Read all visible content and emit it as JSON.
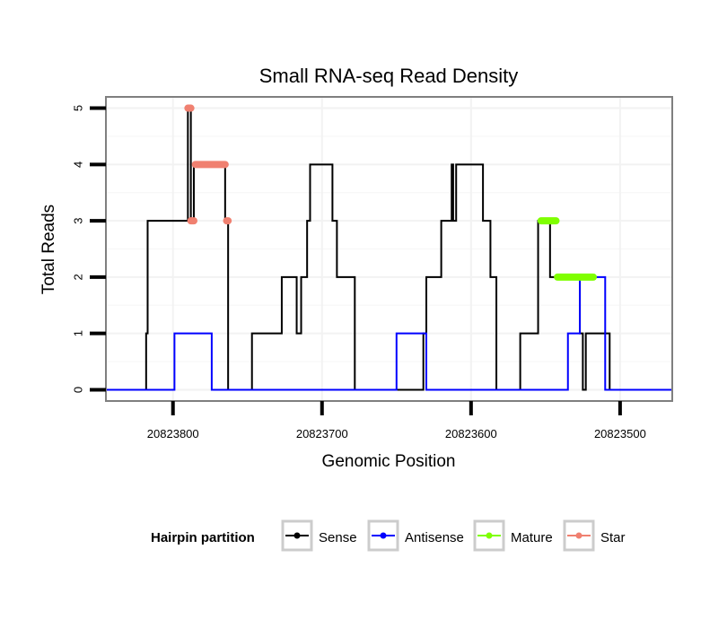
{
  "chart_data": {
    "type": "line",
    "title": "Small RNA-seq Read Density",
    "xlabel": "Genomic Position",
    "ylabel": "Total Reads",
    "xlim": [
      20823845,
      20823465
    ],
    "ylim": [
      -0.2,
      5.2
    ],
    "x_reversed": true,
    "x_ticks": [
      20823800,
      20823700,
      20823600,
      20823500
    ],
    "x_tick_labels": [
      "20823800",
      "20823700",
      "20823600",
      "20823500"
    ],
    "y_ticks": [
      0,
      1,
      2,
      3,
      4,
      5
    ],
    "y_tick_labels": [
      "0",
      "1",
      "2",
      "3",
      "4",
      "5"
    ],
    "grid": true,
    "legend_title": "Hairpin partition",
    "legend_position": "bottom",
    "series": [
      {
        "name": "Sense",
        "color": "#000000",
        "kind": "step",
        "points": [
          [
            20823845,
            0
          ],
          [
            20823818,
            0
          ],
          [
            20823818,
            1
          ],
          [
            20823817,
            1
          ],
          [
            20823817,
            3
          ],
          [
            20823790,
            3
          ],
          [
            20823790,
            5
          ],
          [
            20823788,
            5
          ],
          [
            20823788,
            3
          ],
          [
            20823786,
            3
          ],
          [
            20823786,
            4
          ],
          [
            20823765,
            4
          ],
          [
            20823765,
            3
          ],
          [
            20823763,
            3
          ],
          [
            20823763,
            0
          ],
          [
            20823747,
            0
          ],
          [
            20823747,
            1
          ],
          [
            20823727,
            1
          ],
          [
            20823727,
            2
          ],
          [
            20823717,
            2
          ],
          [
            20823717,
            1
          ],
          [
            20823714,
            1
          ],
          [
            20823714,
            2
          ],
          [
            20823710,
            2
          ],
          [
            20823710,
            3
          ],
          [
            20823708,
            3
          ],
          [
            20823708,
            4
          ],
          [
            20823693,
            4
          ],
          [
            20823693,
            3
          ],
          [
            20823690,
            3
          ],
          [
            20823690,
            2
          ],
          [
            20823678,
            2
          ],
          [
            20823678,
            0
          ],
          [
            20823632,
            0
          ],
          [
            20823632,
            1
          ],
          [
            20823630,
            1
          ],
          [
            20823630,
            2
          ],
          [
            20823620,
            2
          ],
          [
            20823620,
            3
          ],
          [
            20823613,
            3
          ],
          [
            20823613,
            4
          ],
          [
            20823612,
            4
          ],
          [
            20823612,
            3
          ],
          [
            20823610,
            3
          ],
          [
            20823610,
            4
          ],
          [
            20823592,
            4
          ],
          [
            20823592,
            3
          ],
          [
            20823587,
            3
          ],
          [
            20823587,
            2
          ],
          [
            20823583,
            2
          ],
          [
            20823583,
            0
          ],
          [
            20823567,
            0
          ],
          [
            20823567,
            1
          ],
          [
            20823555,
            1
          ],
          [
            20823555,
            3
          ],
          [
            20823547,
            3
          ],
          [
            20823547,
            2
          ],
          [
            20823527,
            2
          ],
          [
            20823527,
            1
          ],
          [
            20823525,
            1
          ],
          [
            20823525,
            0
          ],
          [
            20823523,
            0
          ],
          [
            20823523,
            1
          ],
          [
            20823507,
            1
          ],
          [
            20823507,
            0
          ],
          [
            20823465,
            0
          ]
        ]
      },
      {
        "name": "Antisense",
        "color": "#0000ff",
        "kind": "step",
        "points": [
          [
            20823845,
            0
          ],
          [
            20823799,
            0
          ],
          [
            20823799,
            1
          ],
          [
            20823774,
            1
          ],
          [
            20823774,
            0
          ],
          [
            20823650,
            0
          ],
          [
            20823650,
            1
          ],
          [
            20823630,
            1
          ],
          [
            20823630,
            0
          ],
          [
            20823535,
            0
          ],
          [
            20823535,
            1
          ],
          [
            20823527,
            1
          ],
          [
            20823527,
            2
          ],
          [
            20823510,
            2
          ],
          [
            20823510,
            0
          ],
          [
            20823465,
            0
          ]
        ]
      },
      {
        "name": "Mature",
        "color": "#7fff00",
        "kind": "segments",
        "segments": [
          {
            "x": [
              20823553,
              20823543
            ],
            "y": 3
          },
          {
            "x": [
              20823542,
              20823518
            ],
            "y": 2
          }
        ]
      },
      {
        "name": "Star",
        "color": "#f08070",
        "kind": "segments",
        "segments": [
          {
            "x": [
              20823790,
              20823788
            ],
            "y": 5
          },
          {
            "x": [
              20823788,
              20823786
            ],
            "y": 3
          },
          {
            "x": [
              20823785,
              20823765
            ],
            "y": 4
          },
          {
            "x": [
              20823764,
              20823763
            ],
            "y": 3
          }
        ]
      }
    ]
  }
}
